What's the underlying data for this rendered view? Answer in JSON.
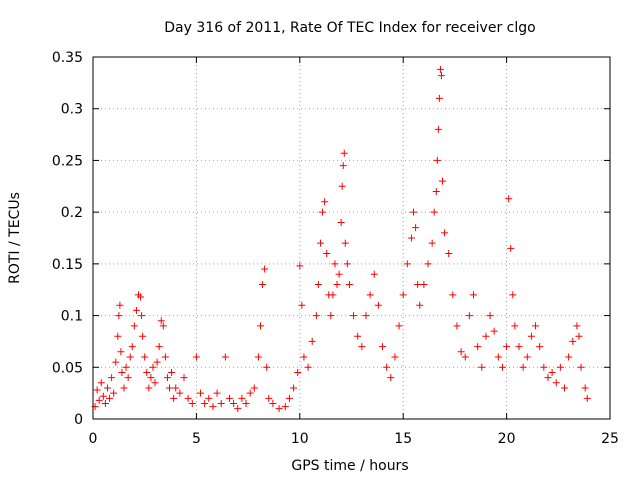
{
  "chart_data": {
    "type": "scatter",
    "title": "Day 316 of 2011, Rate Of TEC Index for receiver clgo",
    "xlabel": "GPS time / hours",
    "ylabel": "ROTI / TECUs",
    "xlim": [
      0,
      25
    ],
    "ylim": [
      0,
      0.35
    ],
    "xticks": [
      0,
      5,
      10,
      15,
      20,
      25
    ],
    "xtick_labels": [
      "0",
      "5",
      "10",
      "15",
      "20",
      "25"
    ],
    "yticks": [
      0,
      0.05,
      0.1,
      0.15,
      0.2,
      0.25,
      0.3,
      0.35
    ],
    "ytick_labels": [
      "0",
      "0.05",
      "0.1",
      "0.15",
      "0.2",
      "0.25",
      "0.3",
      "0.35"
    ],
    "grid": true,
    "marker": "plus",
    "color": "#ff0000",
    "series": [
      {
        "points": [
          [
            0.1,
            0.012
          ],
          [
            0.2,
            0.028
          ],
          [
            0.3,
            0.018
          ],
          [
            0.4,
            0.035
          ],
          [
            0.5,
            0.022
          ],
          [
            0.6,
            0.015
          ],
          [
            0.7,
            0.03
          ],
          [
            0.8,
            0.02
          ],
          [
            0.9,
            0.04
          ],
          [
            1.0,
            0.025
          ],
          [
            1.1,
            0.055
          ],
          [
            1.2,
            0.08
          ],
          [
            1.25,
            0.1
          ],
          [
            1.3,
            0.11
          ],
          [
            1.35,
            0.065
          ],
          [
            1.4,
            0.045
          ],
          [
            1.5,
            0.03
          ],
          [
            1.6,
            0.05
          ],
          [
            1.7,
            0.04
          ],
          [
            1.8,
            0.06
          ],
          [
            1.9,
            0.07
          ],
          [
            2.0,
            0.09
          ],
          [
            2.1,
            0.105
          ],
          [
            2.2,
            0.12
          ],
          [
            2.3,
            0.118
          ],
          [
            2.35,
            0.1
          ],
          [
            2.4,
            0.08
          ],
          [
            2.5,
            0.06
          ],
          [
            2.6,
            0.045
          ],
          [
            2.7,
            0.03
          ],
          [
            2.8,
            0.04
          ],
          [
            2.9,
            0.05
          ],
          [
            3.0,
            0.035
          ],
          [
            3.1,
            0.055
          ],
          [
            3.2,
            0.07
          ],
          [
            3.3,
            0.095
          ],
          [
            3.4,
            0.09
          ],
          [
            3.5,
            0.06
          ],
          [
            3.6,
            0.04
          ],
          [
            3.7,
            0.03
          ],
          [
            3.8,
            0.045
          ],
          [
            3.9,
            0.02
          ],
          [
            4.0,
            0.03
          ],
          [
            4.2,
            0.025
          ],
          [
            4.4,
            0.04
          ],
          [
            4.6,
            0.02
          ],
          [
            4.8,
            0.015
          ],
          [
            5.0,
            0.06
          ],
          [
            5.2,
            0.025
          ],
          [
            5.4,
            0.015
          ],
          [
            5.6,
            0.02
          ],
          [
            5.8,
            0.012
          ],
          [
            6.0,
            0.025
          ],
          [
            6.2,
            0.015
          ],
          [
            6.4,
            0.06
          ],
          [
            6.6,
            0.02
          ],
          [
            6.8,
            0.015
          ],
          [
            7.0,
            0.01
          ],
          [
            7.2,
            0.02
          ],
          [
            7.4,
            0.015
          ],
          [
            7.6,
            0.025
          ],
          [
            7.8,
            0.03
          ],
          [
            8.0,
            0.06
          ],
          [
            8.1,
            0.09
          ],
          [
            8.2,
            0.13
          ],
          [
            8.3,
            0.145
          ],
          [
            8.4,
            0.05
          ],
          [
            8.5,
            0.02
          ],
          [
            8.7,
            0.015
          ],
          [
            9.0,
            0.01
          ],
          [
            9.3,
            0.012
          ],
          [
            9.5,
            0.02
          ],
          [
            9.7,
            0.03
          ],
          [
            9.9,
            0.045
          ],
          [
            10.0,
            0.148
          ],
          [
            10.1,
            0.11
          ],
          [
            10.2,
            0.06
          ],
          [
            10.4,
            0.05
          ],
          [
            10.6,
            0.075
          ],
          [
            10.8,
            0.1
          ],
          [
            10.9,
            0.13
          ],
          [
            11.0,
            0.17
          ],
          [
            11.1,
            0.2
          ],
          [
            11.2,
            0.21
          ],
          [
            11.3,
            0.16
          ],
          [
            11.4,
            0.12
          ],
          [
            11.5,
            0.1
          ],
          [
            11.6,
            0.12
          ],
          [
            11.7,
            0.15
          ],
          [
            11.8,
            0.13
          ],
          [
            11.9,
            0.14
          ],
          [
            12.0,
            0.19
          ],
          [
            12.05,
            0.225
          ],
          [
            12.1,
            0.245
          ],
          [
            12.15,
            0.257
          ],
          [
            12.2,
            0.17
          ],
          [
            12.3,
            0.15
          ],
          [
            12.4,
            0.13
          ],
          [
            12.6,
            0.1
          ],
          [
            12.8,
            0.08
          ],
          [
            13.0,
            0.07
          ],
          [
            13.2,
            0.1
          ],
          [
            13.4,
            0.12
          ],
          [
            13.6,
            0.14
          ],
          [
            13.8,
            0.11
          ],
          [
            14.0,
            0.07
          ],
          [
            14.2,
            0.05
          ],
          [
            14.4,
            0.04
          ],
          [
            14.6,
            0.06
          ],
          [
            14.8,
            0.09
          ],
          [
            15.0,
            0.12
          ],
          [
            15.2,
            0.15
          ],
          [
            15.4,
            0.175
          ],
          [
            15.5,
            0.2
          ],
          [
            15.6,
            0.185
          ],
          [
            15.7,
            0.13
          ],
          [
            15.8,
            0.11
          ],
          [
            16.0,
            0.13
          ],
          [
            16.2,
            0.15
          ],
          [
            16.4,
            0.17
          ],
          [
            16.5,
            0.2
          ],
          [
            16.6,
            0.22
          ],
          [
            16.65,
            0.25
          ],
          [
            16.7,
            0.28
          ],
          [
            16.75,
            0.31
          ],
          [
            16.8,
            0.338
          ],
          [
            16.85,
            0.332
          ],
          [
            16.9,
            0.23
          ],
          [
            17.0,
            0.18
          ],
          [
            17.2,
            0.16
          ],
          [
            17.4,
            0.12
          ],
          [
            17.6,
            0.09
          ],
          [
            17.8,
            0.065
          ],
          [
            18.0,
            0.06
          ],
          [
            18.2,
            0.1
          ],
          [
            18.4,
            0.12
          ],
          [
            18.6,
            0.07
          ],
          [
            18.8,
            0.05
          ],
          [
            19.0,
            0.08
          ],
          [
            19.2,
            0.1
          ],
          [
            19.4,
            0.085
          ],
          [
            19.6,
            0.06
          ],
          [
            19.8,
            0.05
          ],
          [
            20.0,
            0.07
          ],
          [
            20.1,
            0.213
          ],
          [
            20.2,
            0.165
          ],
          [
            20.3,
            0.12
          ],
          [
            20.4,
            0.09
          ],
          [
            20.6,
            0.07
          ],
          [
            20.8,
            0.05
          ],
          [
            21.0,
            0.06
          ],
          [
            21.2,
            0.08
          ],
          [
            21.4,
            0.09
          ],
          [
            21.6,
            0.07
          ],
          [
            21.8,
            0.05
          ],
          [
            22.0,
            0.04
          ],
          [
            22.2,
            0.045
          ],
          [
            22.4,
            0.035
          ],
          [
            22.6,
            0.05
          ],
          [
            22.8,
            0.03
          ],
          [
            23.0,
            0.06
          ],
          [
            23.2,
            0.075
          ],
          [
            23.4,
            0.09
          ],
          [
            23.5,
            0.08
          ],
          [
            23.6,
            0.05
          ],
          [
            23.8,
            0.03
          ],
          [
            23.9,
            0.02
          ]
        ]
      }
    ]
  }
}
